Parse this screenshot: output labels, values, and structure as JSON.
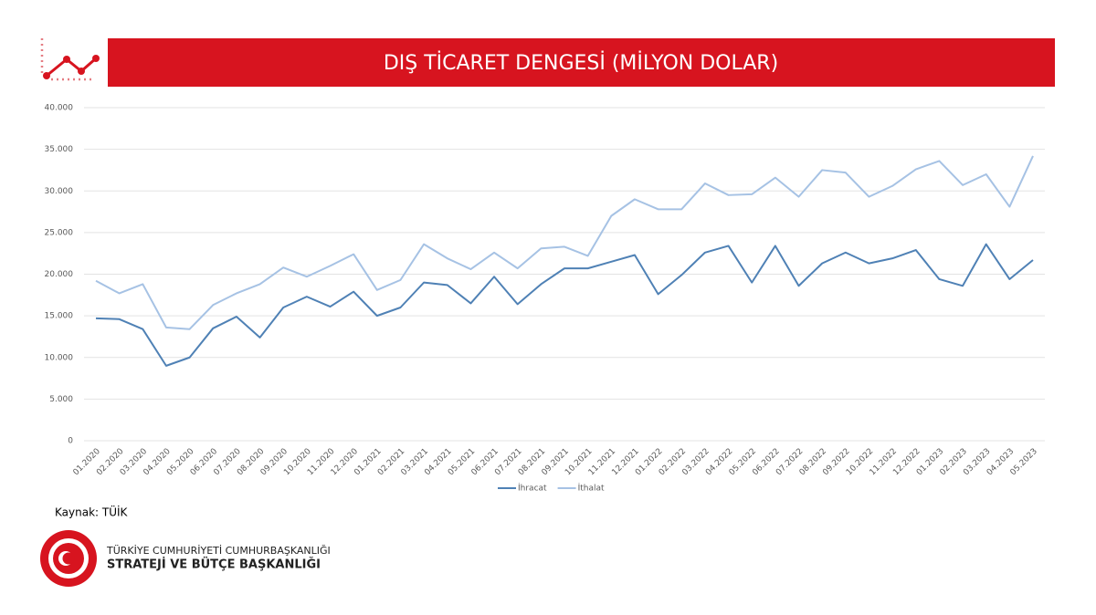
{
  "chart_data": {
    "type": "line",
    "title": "DIŞ TİCARET DENGESİ (MİLYON DOLAR)",
    "categories": [
      "01.2020",
      "02.2020",
      "03.2020",
      "04.2020",
      "05.2020",
      "06.2020",
      "07.2020",
      "08.2020",
      "09.2020",
      "10.2020",
      "11.2020",
      "12.2020",
      "01.2021",
      "02.2021",
      "03.2021",
      "04.2021",
      "05.2021",
      "06.2021",
      "07.2021",
      "08.2021",
      "09.2021",
      "10.2021",
      "11.2021",
      "12.2021",
      "01.2022",
      "02.2022",
      "03.2022",
      "04.2022",
      "05.2022",
      "06.2022",
      "07.2022",
      "08.2022",
      "09.2022",
      "10.2022",
      "11.2022",
      "12.2022",
      "01.2023",
      "02.2023",
      "03.2023",
      "04.2023",
      "05.2023"
    ],
    "series": [
      {
        "name": "İhracat",
        "color": "#4f81b5",
        "values": [
          14700,
          14600,
          13400,
          9000,
          10000,
          13500,
          14900,
          12400,
          16000,
          17300,
          16100,
          17900,
          15000,
          16000,
          19000,
          18700,
          16500,
          19700,
          16400,
          18800,
          20700,
          20700,
          21500,
          22300,
          17600,
          19900,
          22600,
          23400,
          19000,
          23400,
          18600,
          21300,
          22600,
          21300,
          21900,
          22900,
          19400,
          18600,
          23600,
          19400,
          21700
        ]
      },
      {
        "name": "İthalat",
        "color": "#a6c2e4",
        "values": [
          19200,
          17700,
          18800,
          13600,
          13400,
          16300,
          17700,
          18800,
          20800,
          19700,
          21000,
          22400,
          18100,
          19300,
          23600,
          21900,
          20600,
          22600,
          20700,
          23100,
          23300,
          22200,
          27000,
          29000,
          27800,
          27800,
          30900,
          29500,
          29600,
          31600,
          29300,
          32500,
          32200,
          29300,
          30600,
          32600,
          33600,
          30700,
          32000,
          28100,
          34200
        ]
      }
    ],
    "ylim": [
      0,
      40000
    ],
    "yticks": [
      0,
      {
        "value": 5000,
        "label": "5.000"
      },
      {
        "value": 10000,
        "label": "10.000"
      },
      {
        "value": 15000,
        "label": "15.000"
      },
      {
        "value": 20000,
        "label": "20.000"
      },
      {
        "value": 25000,
        "label": "25.000"
      },
      {
        "value": 30000,
        "label": "30.000"
      },
      {
        "value": 35000,
        "label": "35.000"
      },
      {
        "value": 40000,
        "label": "40.000"
      }
    ],
    "grid": true,
    "legend": "bottom"
  },
  "source": "Kaynak: TÜİK",
  "footer": {
    "line1": "TÜRKİYE CUMHURİYETİ CUMHURBAŞKANLIĞI",
    "line2": "STRATEJİ VE BÜTÇE BAŞKANLIĞI"
  }
}
